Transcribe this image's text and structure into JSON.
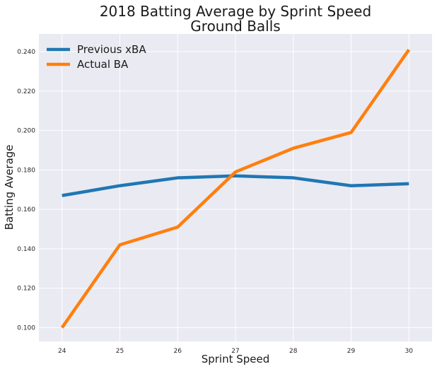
{
  "chart_data": {
    "type": "line",
    "title": [
      "2018 Batting Average by Sprint Speed",
      "Ground Balls"
    ],
    "xlabel": "Sprint Speed",
    "ylabel": "Batting Average",
    "x": [
      24,
      25,
      26,
      27,
      28,
      29,
      30
    ],
    "xlim": [
      23.6,
      30.4
    ],
    "ylim": [
      0.093,
      0.249
    ],
    "xticks": [
      24,
      25,
      26,
      27,
      28,
      29,
      30
    ],
    "yticks": [
      0.1,
      0.12,
      0.14,
      0.16,
      0.18,
      0.2,
      0.22,
      0.24
    ],
    "ytick_labels": [
      "0.100",
      "0.120",
      "0.140",
      "0.160",
      "0.180",
      "0.200",
      "0.220",
      "0.240"
    ],
    "grid": true,
    "legend_position": "top-left",
    "series": [
      {
        "name": "Previous xBA",
        "color": "#1f77b4",
        "values": [
          0.167,
          0.172,
          0.176,
          0.177,
          0.176,
          0.172,
          0.173
        ]
      },
      {
        "name": "Actual BA",
        "color": "#ff7f0e",
        "values": [
          0.1,
          0.142,
          0.151,
          0.179,
          0.191,
          0.199,
          0.241
        ]
      }
    ],
    "background_color": "#eaeaf2",
    "grid_color": "#ffffff"
  }
}
